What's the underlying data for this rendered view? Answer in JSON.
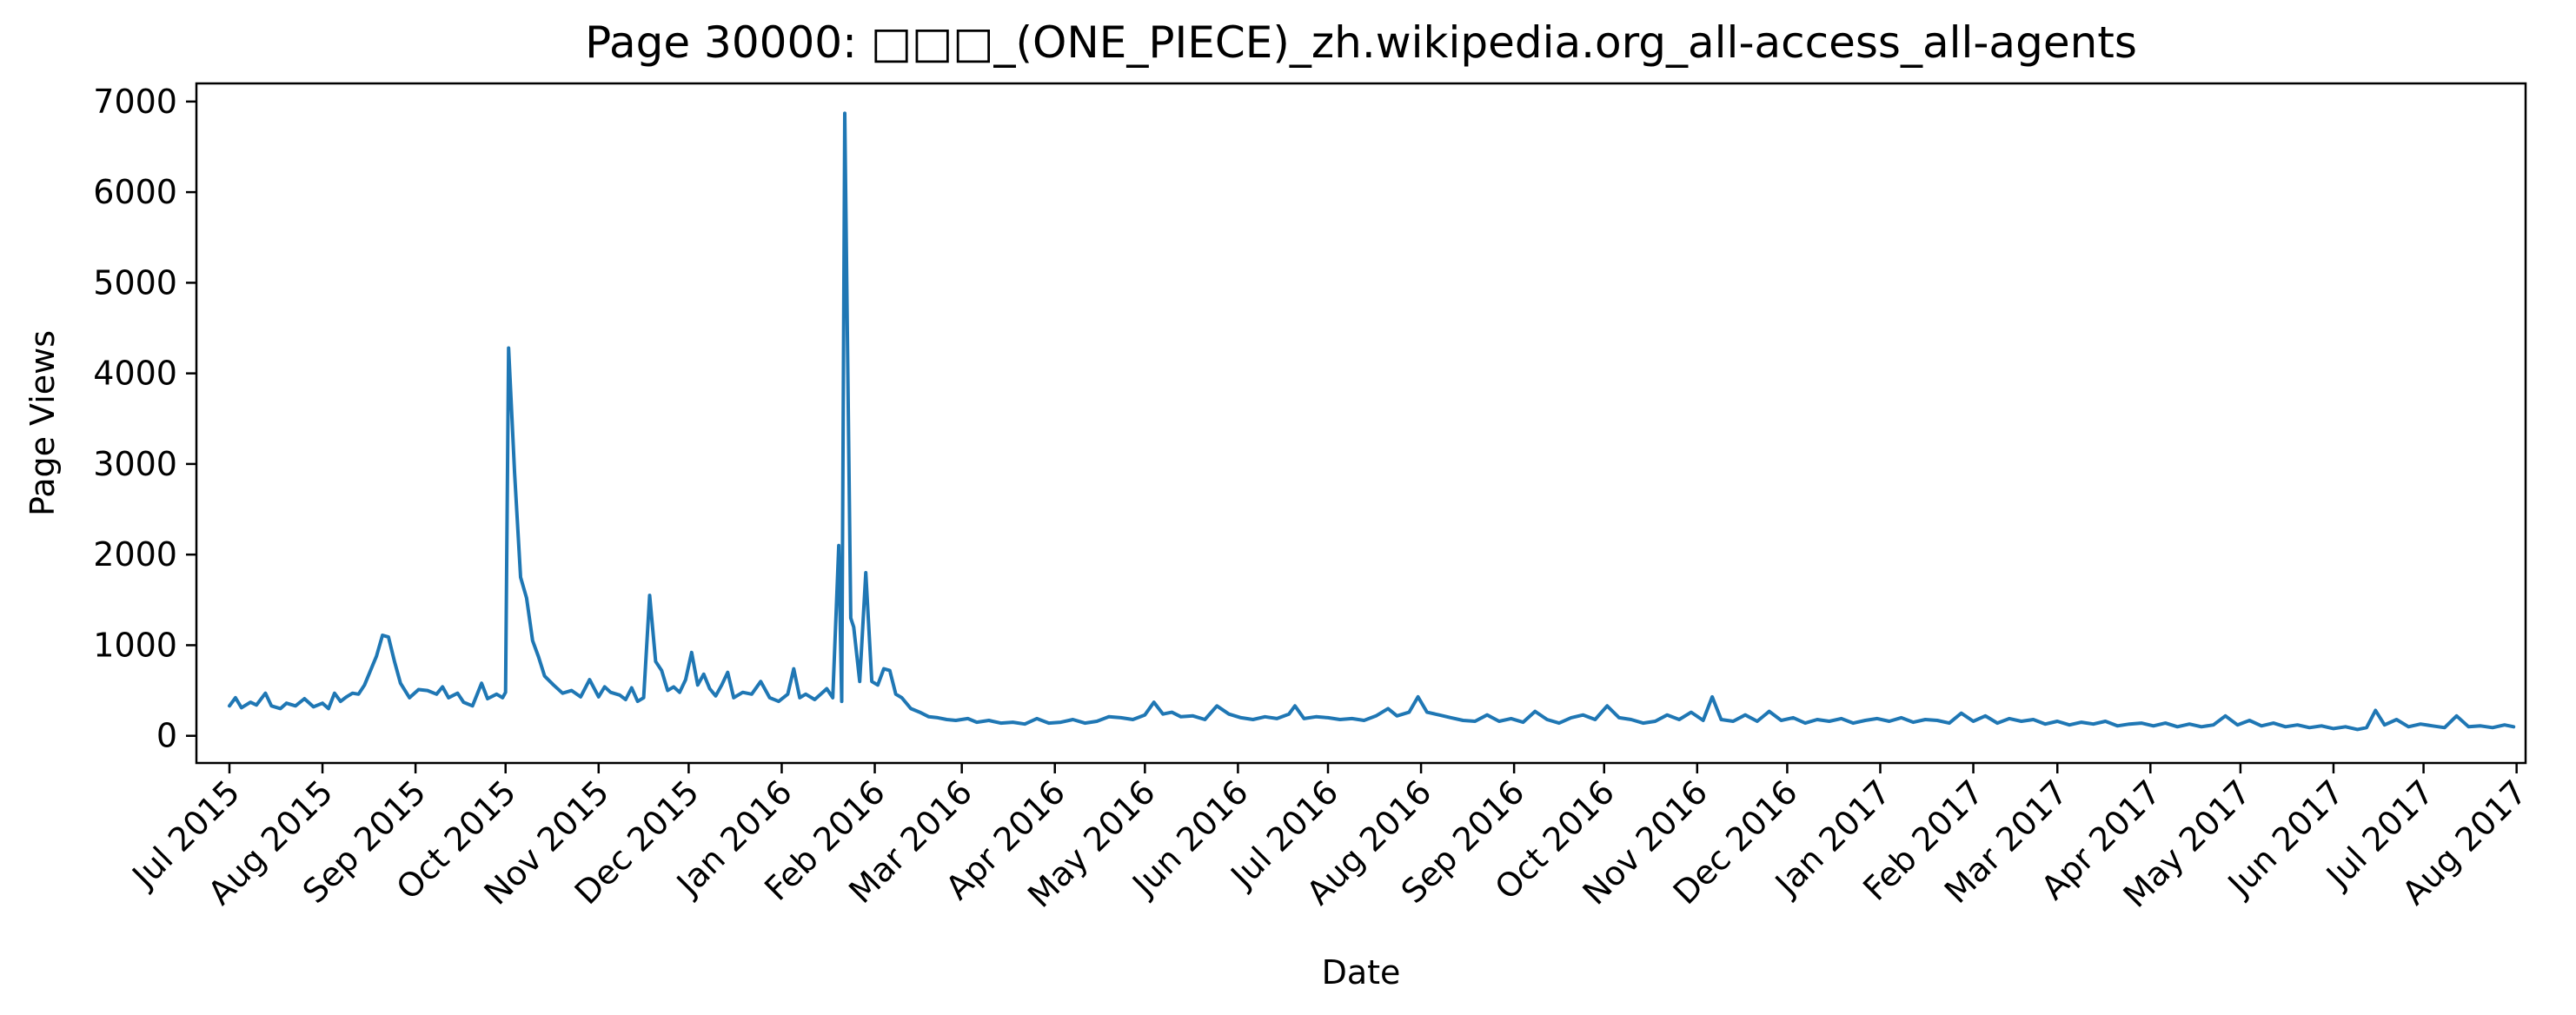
{
  "chart_data": {
    "type": "line",
    "title": "Page 30000: □□□_(ONE_PIECE)_zh.wikipedia.org_all-access_all-agents",
    "xlabel": "Date",
    "ylabel": "Page Views",
    "xlim": [
      "2015-06-20",
      "2017-08-04"
    ],
    "ylim": [
      -300,
      7200
    ],
    "grid": false,
    "yticks": [
      0,
      1000,
      2000,
      3000,
      4000,
      5000,
      6000,
      7000
    ],
    "xticks": [
      {
        "date": "2015-07-01",
        "label": "Jul 2015"
      },
      {
        "date": "2015-08-01",
        "label": "Aug 2015"
      },
      {
        "date": "2015-09-01",
        "label": "Sep 2015"
      },
      {
        "date": "2015-10-01",
        "label": "Oct 2015"
      },
      {
        "date": "2015-11-01",
        "label": "Nov 2015"
      },
      {
        "date": "2015-12-01",
        "label": "Dec 2015"
      },
      {
        "date": "2016-01-01",
        "label": "Jan 2016"
      },
      {
        "date": "2016-02-01",
        "label": "Feb 2016"
      },
      {
        "date": "2016-03-01",
        "label": "Mar 2016"
      },
      {
        "date": "2016-04-01",
        "label": "Apr 2016"
      },
      {
        "date": "2016-05-01",
        "label": "May 2016"
      },
      {
        "date": "2016-06-01",
        "label": "Jun 2016"
      },
      {
        "date": "2016-07-01",
        "label": "Jul 2016"
      },
      {
        "date": "2016-08-01",
        "label": "Aug 2016"
      },
      {
        "date": "2016-09-01",
        "label": "Sep 2016"
      },
      {
        "date": "2016-10-01",
        "label": "Oct 2016"
      },
      {
        "date": "2016-11-01",
        "label": "Nov 2016"
      },
      {
        "date": "2016-12-01",
        "label": "Dec 2016"
      },
      {
        "date": "2017-01-01",
        "label": "Jan 2017"
      },
      {
        "date": "2017-02-01",
        "label": "Feb 2017"
      },
      {
        "date": "2017-03-01",
        "label": "Mar 2017"
      },
      {
        "date": "2017-04-01",
        "label": "Apr 2017"
      },
      {
        "date": "2017-05-01",
        "label": "May 2017"
      },
      {
        "date": "2017-06-01",
        "label": "Jun 2017"
      },
      {
        "date": "2017-07-01",
        "label": "Jul 2017"
      },
      {
        "date": "2017-08-01",
        "label": "Aug 2017"
      }
    ],
    "series": [
      {
        "color": "#1f77b4",
        "points": [
          [
            "2015-07-01",
            330
          ],
          [
            "2015-07-03",
            420
          ],
          [
            "2015-07-05",
            310
          ],
          [
            "2015-07-08",
            370
          ],
          [
            "2015-07-10",
            340
          ],
          [
            "2015-07-13",
            470
          ],
          [
            "2015-07-15",
            330
          ],
          [
            "2015-07-18",
            300
          ],
          [
            "2015-07-20",
            360
          ],
          [
            "2015-07-23",
            330
          ],
          [
            "2015-07-26",
            410
          ],
          [
            "2015-07-29",
            320
          ],
          [
            "2015-08-01",
            360
          ],
          [
            "2015-08-03",
            300
          ],
          [
            "2015-08-05",
            470
          ],
          [
            "2015-08-07",
            380
          ],
          [
            "2015-08-09",
            430
          ],
          [
            "2015-08-11",
            470
          ],
          [
            "2015-08-13",
            460
          ],
          [
            "2015-08-15",
            560
          ],
          [
            "2015-08-17",
            720
          ],
          [
            "2015-08-19",
            880
          ],
          [
            "2015-08-21",
            1110
          ],
          [
            "2015-08-23",
            1090
          ],
          [
            "2015-08-25",
            820
          ],
          [
            "2015-08-27",
            580
          ],
          [
            "2015-08-30",
            420
          ],
          [
            "2015-09-02",
            510
          ],
          [
            "2015-09-05",
            500
          ],
          [
            "2015-09-08",
            460
          ],
          [
            "2015-09-10",
            540
          ],
          [
            "2015-09-12",
            420
          ],
          [
            "2015-09-15",
            470
          ],
          [
            "2015-09-17",
            370
          ],
          [
            "2015-09-20",
            330
          ],
          [
            "2015-09-23",
            580
          ],
          [
            "2015-09-25",
            410
          ],
          [
            "2015-09-28",
            460
          ],
          [
            "2015-09-30",
            420
          ],
          [
            "2015-10-01",
            480
          ],
          [
            "2015-10-02",
            4280
          ],
          [
            "2015-10-04",
            2900
          ],
          [
            "2015-10-06",
            1750
          ],
          [
            "2015-10-08",
            1520
          ],
          [
            "2015-10-10",
            1050
          ],
          [
            "2015-10-12",
            870
          ],
          [
            "2015-10-14",
            660
          ],
          [
            "2015-10-17",
            560
          ],
          [
            "2015-10-20",
            470
          ],
          [
            "2015-10-23",
            500
          ],
          [
            "2015-10-26",
            430
          ],
          [
            "2015-10-29",
            620
          ],
          [
            "2015-11-01",
            430
          ],
          [
            "2015-11-03",
            540
          ],
          [
            "2015-11-05",
            480
          ],
          [
            "2015-11-08",
            450
          ],
          [
            "2015-11-10",
            400
          ],
          [
            "2015-11-12",
            530
          ],
          [
            "2015-11-14",
            380
          ],
          [
            "2015-11-16",
            420
          ],
          [
            "2015-11-18",
            1550
          ],
          [
            "2015-11-20",
            820
          ],
          [
            "2015-11-22",
            720
          ],
          [
            "2015-11-24",
            500
          ],
          [
            "2015-11-26",
            540
          ],
          [
            "2015-11-28",
            480
          ],
          [
            "2015-11-30",
            620
          ],
          [
            "2015-12-02",
            920
          ],
          [
            "2015-12-04",
            560
          ],
          [
            "2015-12-06",
            680
          ],
          [
            "2015-12-08",
            520
          ],
          [
            "2015-12-10",
            440
          ],
          [
            "2015-12-12",
            560
          ],
          [
            "2015-12-14",
            700
          ],
          [
            "2015-12-16",
            420
          ],
          [
            "2015-12-19",
            480
          ],
          [
            "2015-12-22",
            460
          ],
          [
            "2015-12-25",
            600
          ],
          [
            "2015-12-28",
            420
          ],
          [
            "2015-12-31",
            380
          ],
          [
            "2016-01-03",
            460
          ],
          [
            "2016-01-05",
            740
          ],
          [
            "2016-01-07",
            420
          ],
          [
            "2016-01-09",
            460
          ],
          [
            "2016-01-12",
            400
          ],
          [
            "2016-01-14",
            460
          ],
          [
            "2016-01-16",
            520
          ],
          [
            "2016-01-18",
            420
          ],
          [
            "2016-01-20",
            2100
          ],
          [
            "2016-01-21",
            380
          ],
          [
            "2016-01-22",
            6870
          ],
          [
            "2016-01-24",
            1300
          ],
          [
            "2016-01-25",
            1200
          ],
          [
            "2016-01-27",
            600
          ],
          [
            "2016-01-29",
            1800
          ],
          [
            "2016-01-31",
            600
          ],
          [
            "2016-02-02",
            560
          ],
          [
            "2016-02-04",
            740
          ],
          [
            "2016-02-06",
            720
          ],
          [
            "2016-02-08",
            460
          ],
          [
            "2016-02-10",
            420
          ],
          [
            "2016-02-13",
            300
          ],
          [
            "2016-02-16",
            260
          ],
          [
            "2016-02-19",
            210
          ],
          [
            "2016-02-22",
            200
          ],
          [
            "2016-02-25",
            180
          ],
          [
            "2016-02-28",
            170
          ],
          [
            "2016-03-03",
            190
          ],
          [
            "2016-03-06",
            150
          ],
          [
            "2016-03-10",
            170
          ],
          [
            "2016-03-14",
            140
          ],
          [
            "2016-03-18",
            150
          ],
          [
            "2016-03-22",
            130
          ],
          [
            "2016-03-26",
            190
          ],
          [
            "2016-03-30",
            140
          ],
          [
            "2016-04-03",
            150
          ],
          [
            "2016-04-07",
            180
          ],
          [
            "2016-04-11",
            140
          ],
          [
            "2016-04-15",
            160
          ],
          [
            "2016-04-19",
            210
          ],
          [
            "2016-04-23",
            200
          ],
          [
            "2016-04-27",
            180
          ],
          [
            "2016-05-01",
            230
          ],
          [
            "2016-05-04",
            370
          ],
          [
            "2016-05-07",
            240
          ],
          [
            "2016-05-10",
            260
          ],
          [
            "2016-05-13",
            210
          ],
          [
            "2016-05-17",
            220
          ],
          [
            "2016-05-21",
            180
          ],
          [
            "2016-05-25",
            330
          ],
          [
            "2016-05-29",
            240
          ],
          [
            "2016-06-02",
            200
          ],
          [
            "2016-06-06",
            180
          ],
          [
            "2016-06-10",
            210
          ],
          [
            "2016-06-14",
            190
          ],
          [
            "2016-06-18",
            240
          ],
          [
            "2016-06-20",
            330
          ],
          [
            "2016-06-23",
            190
          ],
          [
            "2016-06-27",
            210
          ],
          [
            "2016-07-01",
            200
          ],
          [
            "2016-07-05",
            180
          ],
          [
            "2016-07-09",
            190
          ],
          [
            "2016-07-13",
            170
          ],
          [
            "2016-07-17",
            220
          ],
          [
            "2016-07-21",
            300
          ],
          [
            "2016-07-24",
            220
          ],
          [
            "2016-07-28",
            260
          ],
          [
            "2016-07-31",
            430
          ],
          [
            "2016-08-03",
            260
          ],
          [
            "2016-08-07",
            230
          ],
          [
            "2016-08-11",
            200
          ],
          [
            "2016-08-15",
            170
          ],
          [
            "2016-08-19",
            160
          ],
          [
            "2016-08-23",
            230
          ],
          [
            "2016-08-27",
            160
          ],
          [
            "2016-08-31",
            190
          ],
          [
            "2016-09-04",
            150
          ],
          [
            "2016-09-08",
            270
          ],
          [
            "2016-09-12",
            180
          ],
          [
            "2016-09-16",
            140
          ],
          [
            "2016-09-20",
            200
          ],
          [
            "2016-09-24",
            230
          ],
          [
            "2016-09-28",
            180
          ],
          [
            "2016-10-02",
            330
          ],
          [
            "2016-10-06",
            200
          ],
          [
            "2016-10-10",
            180
          ],
          [
            "2016-10-14",
            140
          ],
          [
            "2016-10-18",
            160
          ],
          [
            "2016-10-22",
            230
          ],
          [
            "2016-10-26",
            180
          ],
          [
            "2016-10-30",
            260
          ],
          [
            "2016-11-03",
            170
          ],
          [
            "2016-11-06",
            430
          ],
          [
            "2016-11-09",
            180
          ],
          [
            "2016-11-13",
            160
          ],
          [
            "2016-11-17",
            230
          ],
          [
            "2016-11-21",
            160
          ],
          [
            "2016-11-25",
            270
          ],
          [
            "2016-11-29",
            170
          ],
          [
            "2016-12-03",
            200
          ],
          [
            "2016-12-07",
            140
          ],
          [
            "2016-12-11",
            180
          ],
          [
            "2016-12-15",
            160
          ],
          [
            "2016-12-19",
            190
          ],
          [
            "2016-12-23",
            140
          ],
          [
            "2016-12-27",
            170
          ],
          [
            "2016-12-31",
            190
          ],
          [
            "2017-01-04",
            160
          ],
          [
            "2017-01-08",
            200
          ],
          [
            "2017-01-12",
            150
          ],
          [
            "2017-01-16",
            180
          ],
          [
            "2017-01-20",
            170
          ],
          [
            "2017-01-24",
            140
          ],
          [
            "2017-01-28",
            250
          ],
          [
            "2017-02-01",
            160
          ],
          [
            "2017-02-05",
            220
          ],
          [
            "2017-02-09",
            140
          ],
          [
            "2017-02-13",
            190
          ],
          [
            "2017-02-17",
            160
          ],
          [
            "2017-02-21",
            180
          ],
          [
            "2017-02-25",
            130
          ],
          [
            "2017-03-01",
            160
          ],
          [
            "2017-03-05",
            120
          ],
          [
            "2017-03-09",
            150
          ],
          [
            "2017-03-13",
            130
          ],
          [
            "2017-03-17",
            160
          ],
          [
            "2017-03-21",
            110
          ],
          [
            "2017-03-25",
            130
          ],
          [
            "2017-03-29",
            140
          ],
          [
            "2017-04-02",
            110
          ],
          [
            "2017-04-06",
            140
          ],
          [
            "2017-04-10",
            100
          ],
          [
            "2017-04-14",
            130
          ],
          [
            "2017-04-18",
            100
          ],
          [
            "2017-04-22",
            120
          ],
          [
            "2017-04-26",
            220
          ],
          [
            "2017-04-30",
            120
          ],
          [
            "2017-05-04",
            170
          ],
          [
            "2017-05-08",
            110
          ],
          [
            "2017-05-12",
            140
          ],
          [
            "2017-05-16",
            100
          ],
          [
            "2017-05-20",
            120
          ],
          [
            "2017-05-24",
            90
          ],
          [
            "2017-05-28",
            110
          ],
          [
            "2017-06-01",
            80
          ],
          [
            "2017-06-05",
            100
          ],
          [
            "2017-06-09",
            70
          ],
          [
            "2017-06-12",
            90
          ],
          [
            "2017-06-15",
            280
          ],
          [
            "2017-06-18",
            120
          ],
          [
            "2017-06-22",
            180
          ],
          [
            "2017-06-26",
            100
          ],
          [
            "2017-06-30",
            130
          ],
          [
            "2017-07-04",
            110
          ],
          [
            "2017-07-08",
            90
          ],
          [
            "2017-07-12",
            220
          ],
          [
            "2017-07-16",
            100
          ],
          [
            "2017-07-20",
            110
          ],
          [
            "2017-07-24",
            90
          ],
          [
            "2017-07-28",
            120
          ],
          [
            "2017-07-31",
            100
          ]
        ]
      }
    ]
  }
}
